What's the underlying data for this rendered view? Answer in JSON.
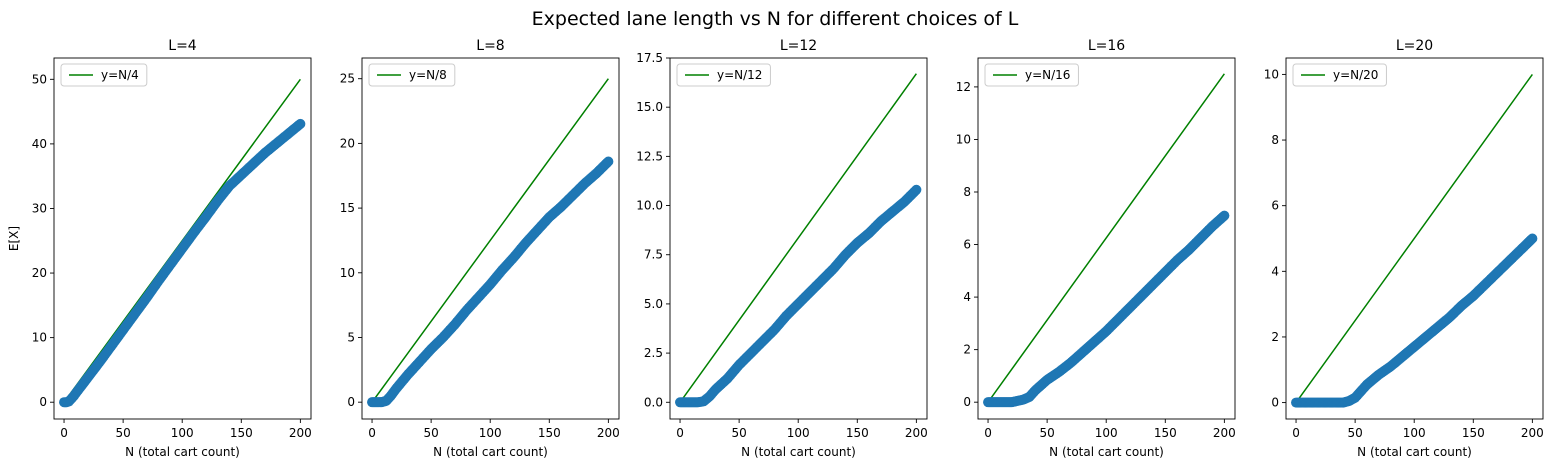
{
  "figure": {
    "suptitle": "Expected lane length vs N for different choices of L"
  },
  "chart_data": [
    {
      "type": "scatter",
      "title": "L=4",
      "xlabel": "N (total cart count)",
      "ylabel": "E[X]",
      "xlim": [
        -8.5,
        209
      ],
      "ylim": [
        -2.6,
        53.3
      ],
      "xticks": [
        0,
        50,
        100,
        150,
        200
      ],
      "yticks": [
        0,
        10,
        20,
        30,
        40,
        50
      ],
      "ytick_labels": [
        "0",
        "10",
        "20",
        "30",
        "40",
        "50"
      ],
      "legend": {
        "label": "y=N/4",
        "position": "upper-left"
      },
      "reference_line": {
        "label": "y=N/4",
        "x": [
          0,
          200
        ],
        "y": [
          0,
          50
        ],
        "color": "#008000"
      },
      "series": [
        {
          "color": "#1f77b4",
          "x": [
            0,
            2,
            4,
            6,
            8,
            10,
            15,
            20,
            30,
            40,
            50,
            60,
            70,
            80,
            90,
            100,
            110,
            120,
            130,
            140,
            150,
            160,
            170,
            180,
            190,
            200
          ],
          "y": [
            0,
            0,
            0.1,
            0.5,
            0.9,
            1.4,
            2.6,
            3.8,
            6.2,
            8.7,
            11.2,
            13.7,
            16.2,
            18.8,
            21.3,
            23.8,
            26.3,
            28.7,
            31.2,
            33.5,
            35.2,
            36.9,
            38.6,
            40.1,
            41.6,
            43.1
          ]
        }
      ]
    },
    {
      "type": "scatter",
      "title": "L=8",
      "xlabel": "N (total cart count)",
      "ylabel": "",
      "xlim": [
        -8.5,
        209
      ],
      "ylim": [
        -1.3,
        26.6
      ],
      "xticks": [
        0,
        50,
        100,
        150,
        200
      ],
      "yticks": [
        0,
        5,
        10,
        15,
        20,
        25
      ],
      "ytick_labels": [
        "0",
        "5",
        "10",
        "15",
        "20",
        "25"
      ],
      "legend": {
        "label": "y=N/8",
        "position": "upper-left"
      },
      "reference_line": {
        "label": "y=N/8",
        "x": [
          0,
          200
        ],
        "y": [
          0,
          25
        ],
        "color": "#008000"
      },
      "series": [
        {
          "color": "#1f77b4",
          "x": [
            0,
            4,
            8,
            12,
            16,
            20,
            30,
            40,
            50,
            60,
            70,
            80,
            90,
            100,
            110,
            120,
            130,
            140,
            150,
            160,
            170,
            180,
            190,
            200
          ],
          "y": [
            0,
            0,
            0,
            0.1,
            0.5,
            1.0,
            2.1,
            3.1,
            4.1,
            5.0,
            6.0,
            7.1,
            8.1,
            9.1,
            10.2,
            11.2,
            12.3,
            13.3,
            14.3,
            15.1,
            16.0,
            16.9,
            17.7,
            18.6
          ]
        }
      ]
    },
    {
      "type": "scatter",
      "title": "L=12",
      "xlabel": "N (total cart count)",
      "ylabel": "",
      "xlim": [
        -8.5,
        209
      ],
      "ylim": [
        -0.85,
        17.5
      ],
      "xticks": [
        0,
        50,
        100,
        150,
        200
      ],
      "yticks": [
        0,
        2.5,
        5,
        7.5,
        10,
        12.5,
        15,
        17.5
      ],
      "ytick_labels": [
        "0.0",
        "2.5",
        "5.0",
        "7.5",
        "10.0",
        "12.5",
        "15.0",
        "17.5"
      ],
      "legend": {
        "label": "y=N/12",
        "position": "upper-left"
      },
      "reference_line": {
        "label": "y=N/12",
        "x": [
          0,
          200
        ],
        "y": [
          0,
          16.7
        ],
        "color": "#008000"
      },
      "series": [
        {
          "color": "#1f77b4",
          "x": [
            0,
            5,
            10,
            15,
            20,
            25,
            30,
            40,
            50,
            60,
            70,
            80,
            90,
            100,
            110,
            120,
            130,
            140,
            150,
            160,
            170,
            180,
            190,
            200
          ],
          "y": [
            0,
            0,
            0,
            0,
            0.05,
            0.3,
            0.65,
            1.2,
            1.9,
            2.5,
            3.1,
            3.7,
            4.4,
            5.0,
            5.6,
            6.2,
            6.8,
            7.5,
            8.1,
            8.6,
            9.2,
            9.7,
            10.2,
            10.8
          ]
        }
      ]
    },
    {
      "type": "scatter",
      "title": "L=16",
      "xlabel": "N (total cart count)",
      "ylabel": "",
      "xlim": [
        -8.5,
        209
      ],
      "ylim": [
        -0.64,
        13.1
      ],
      "xticks": [
        0,
        50,
        100,
        150,
        200
      ],
      "yticks": [
        0,
        2,
        4,
        6,
        8,
        10,
        12
      ],
      "ytick_labels": [
        "0",
        "2",
        "4",
        "6",
        "8",
        "10",
        "12"
      ],
      "legend": {
        "label": "y=N/16",
        "position": "upper-left"
      },
      "reference_line": {
        "label": "y=N/16",
        "x": [
          0,
          200
        ],
        "y": [
          0,
          12.5
        ],
        "color": "#008000"
      },
      "series": [
        {
          "color": "#1f77b4",
          "x": [
            0,
            5,
            10,
            15,
            20,
            25,
            30,
            35,
            40,
            50,
            60,
            70,
            80,
            90,
            100,
            110,
            120,
            130,
            140,
            150,
            160,
            170,
            180,
            190,
            200
          ],
          "y": [
            0,
            0,
            0,
            0,
            0,
            0.05,
            0.1,
            0.2,
            0.45,
            0.85,
            1.15,
            1.5,
            1.9,
            2.3,
            2.7,
            3.15,
            3.6,
            4.05,
            4.5,
            4.95,
            5.4,
            5.8,
            6.25,
            6.7,
            7.1
          ]
        }
      ]
    },
    {
      "type": "scatter",
      "title": "L=20",
      "xlabel": "N (total cart count)",
      "ylabel": "",
      "xlim": [
        -8.5,
        209
      ],
      "ylim": [
        -0.5,
        10.5
      ],
      "xticks": [
        0,
        50,
        100,
        150,
        200
      ],
      "yticks": [
        0,
        2,
        4,
        6,
        8,
        10
      ],
      "ytick_labels": [
        "0",
        "2",
        "4",
        "6",
        "8",
        "10"
      ],
      "legend": {
        "label": "y=N/20",
        "position": "upper-left"
      },
      "reference_line": {
        "label": "y=N/20",
        "x": [
          0,
          200
        ],
        "y": [
          0,
          10
        ],
        "color": "#008000"
      },
      "series": [
        {
          "color": "#1f77b4",
          "x": [
            0,
            5,
            10,
            15,
            20,
            25,
            30,
            35,
            40,
            45,
            50,
            55,
            60,
            70,
            80,
            90,
            100,
            110,
            120,
            130,
            140,
            150,
            160,
            170,
            180,
            190,
            200
          ],
          "y": [
            0,
            0,
            0,
            0,
            0,
            0,
            0,
            0,
            0,
            0.05,
            0.15,
            0.35,
            0.55,
            0.85,
            1.1,
            1.4,
            1.7,
            2.0,
            2.3,
            2.6,
            2.95,
            3.25,
            3.6,
            3.95,
            4.3,
            4.65,
            5.0
          ]
        }
      ]
    }
  ]
}
